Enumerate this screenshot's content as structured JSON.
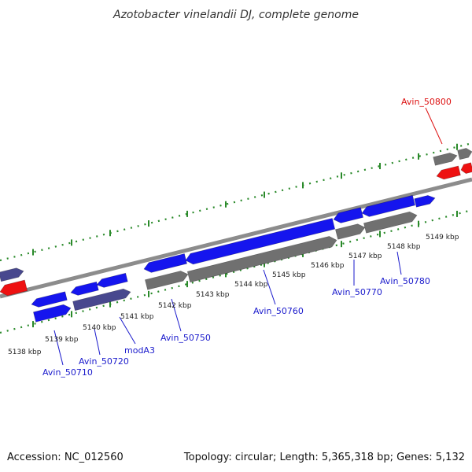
{
  "title": "Azotobacter vinelandii DJ, complete genome",
  "footer": {
    "accession": "Accession: NC_012560",
    "topology": "Topology: circular; Length: 5,365,318 bp; Genes: 5,132"
  },
  "colors": {
    "gene_blue": "#1515ee",
    "gene_grey": "#707070",
    "gene_slate": "#48488e",
    "gene_red": "#ee1111",
    "tick_green": "#2a8a2a",
    "label_blue": "#1a1acc",
    "label_red": "#dd1111"
  },
  "scale": {
    "ticks_kbp": [
      "5138 kbp",
      "5139 kbp",
      "5140 kbp",
      "5141 kbp",
      "5142 kbp",
      "5143 kbp",
      "5144 kbp",
      "5145 kbp",
      "5146 kbp",
      "5147 kbp",
      "5148 kbp",
      "5149 kbp"
    ]
  },
  "gene_labels": [
    "Avin_50710",
    "Avin_50720",
    "modA3",
    "Avin_50750",
    "Avin_50760",
    "Avin_50770",
    "Avin_50780",
    "Avin_50800"
  ]
}
